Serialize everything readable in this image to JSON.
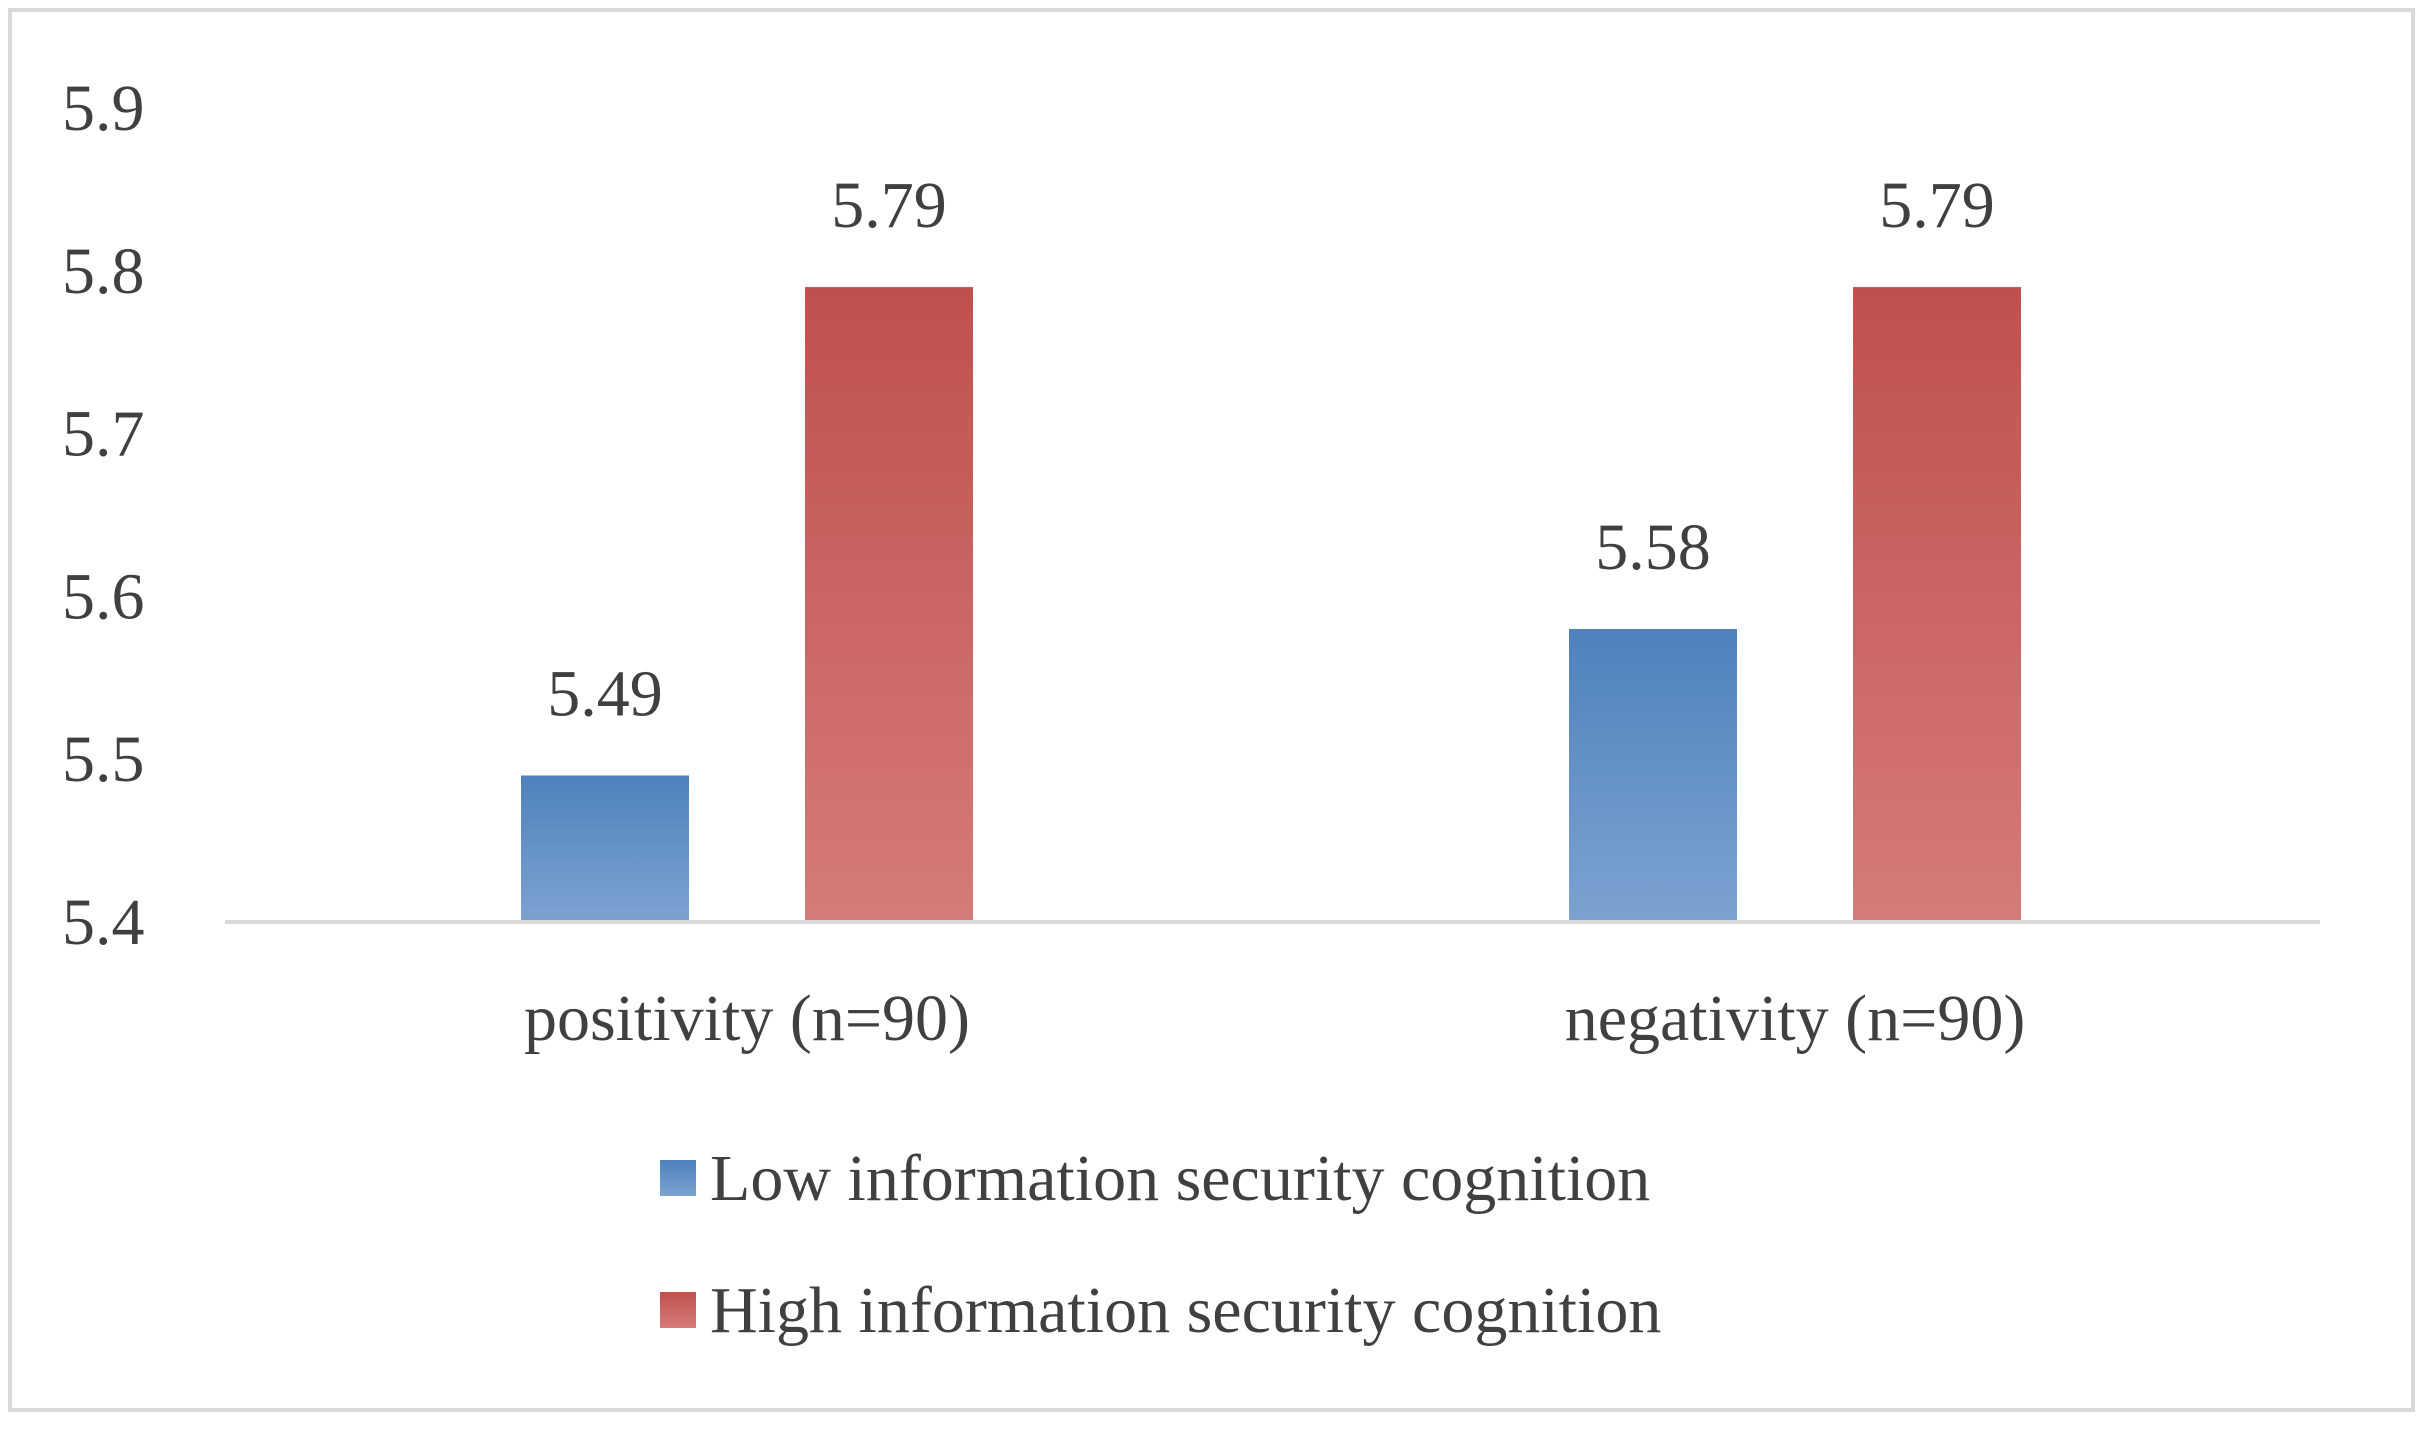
{
  "chart_data": {
    "type": "bar",
    "categories": [
      "positivity (n=90)",
      "negativity (n=90)"
    ],
    "series": [
      {
        "name": "Low information security cognition",
        "values": [
          5.49,
          5.58
        ],
        "color": "#4F81BD",
        "color_light": "#7BA3D1"
      },
      {
        "name": "High information security cognition",
        "values": [
          5.79,
          5.79
        ],
        "color": "#C0504D",
        "color_light": "#D47B7A"
      }
    ],
    "data_labels": [
      [
        "5.49",
        "5.58"
      ],
      [
        "5.79",
        "5.79"
      ]
    ],
    "yticks": [
      "5.4",
      "5.5",
      "5.6",
      "5.7",
      "5.8",
      "5.9"
    ],
    "ylim": [
      5.4,
      5.9
    ],
    "title": "",
    "xlabel": "",
    "ylabel": "",
    "grid": false,
    "legend": "bottom"
  }
}
